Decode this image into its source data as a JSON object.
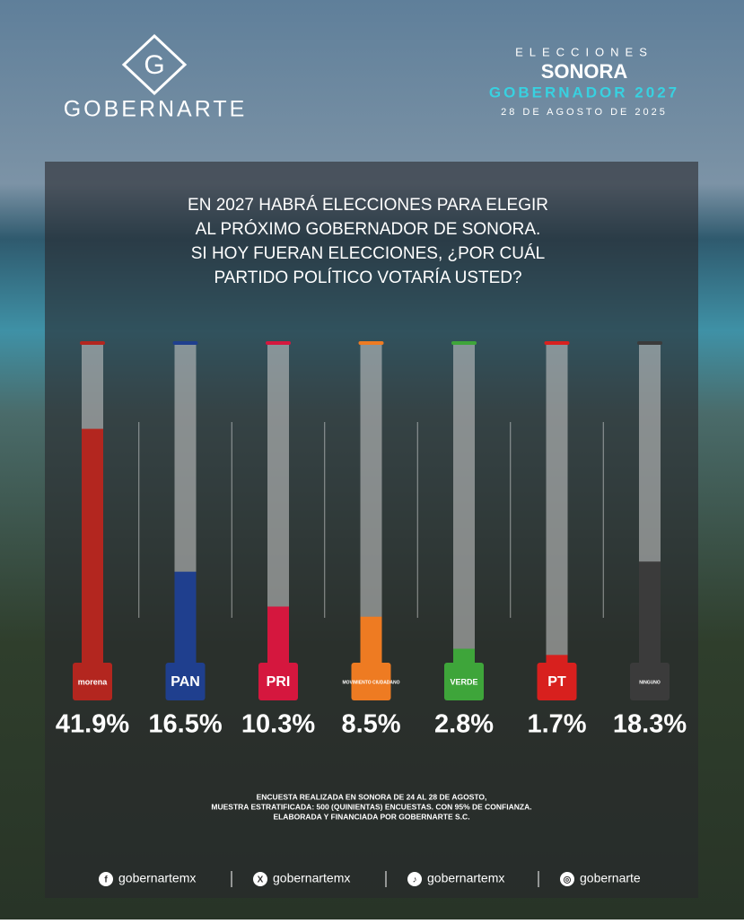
{
  "header": {
    "brand": "GOBERNARTE",
    "logo_letter": "G",
    "kicker": "ELECCIONES",
    "state": "SONORA",
    "race": "GOBERNADOR 2027",
    "date": "28 DE AGOSTO DE 2025"
  },
  "chart_data": {
    "type": "bar",
    "title": [
      "EN 2027 HABRÁ ELECCIONES PARA ELEGIR",
      "AL PRÓXIMO GOBERNADOR DE SONORA.",
      "SI HOY FUERAN ELECCIONES, ¿POR CUÁL",
      "PARTIDO POLÍTICO VOTARÍA USTED?"
    ],
    "categories": [
      "morena",
      "PAN",
      "PRI",
      "MOVIMIENTO CIUDADANO",
      "VERDE",
      "PT",
      "NINGUNO"
    ],
    "values": [
      41.9,
      16.5,
      10.3,
      8.5,
      2.8,
      1.7,
      18.3
    ],
    "value_labels": [
      "41.9%",
      "16.5%",
      "10.3%",
      "8.5%",
      "2.8%",
      "1.7%",
      "18.3%"
    ],
    "colors": [
      "#b3261f",
      "#1f3f8e",
      "#d5173e",
      "#ee7b22",
      "#3ea53a",
      "#d8201e",
      "#3b3b3b"
    ],
    "ylim": [
      0,
      57
    ]
  },
  "footer": {
    "note": [
      "ENCUESTA REALIZADA EN SONORA DE 24 AL 28 DE AGOSTO,",
      "MUESTRA ESTRATIFICADA: 500 (QUINIENTAS) ENCUESTAS. CON 95% DE CONFIANZA.",
      "ELABORADA Y FINANCIADA POR GOBERNARTE S.C."
    ],
    "socials": [
      "gobernartemx",
      "gobernartemx",
      "gobernartemx",
      "gobernarte"
    ]
  }
}
